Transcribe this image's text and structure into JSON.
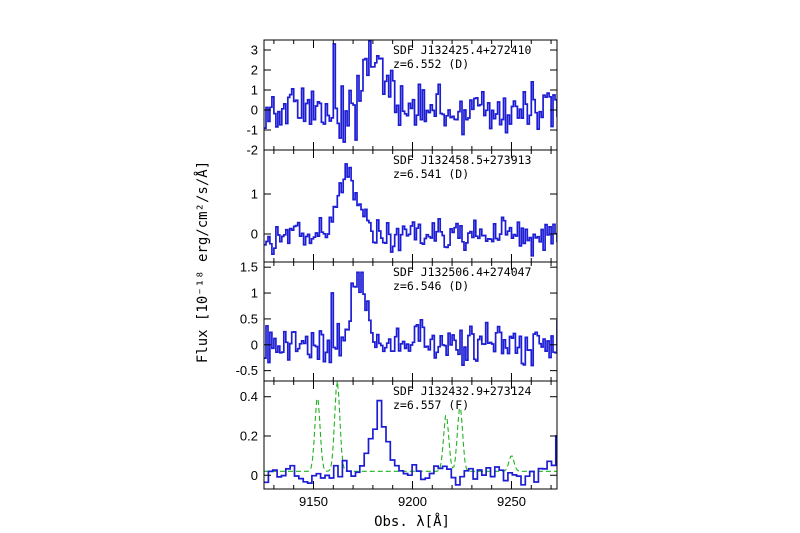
{
  "chart_data": {
    "type": "line",
    "xlabel": "Obs. λ[Å]",
    "ylabel": "Flux [10⁻¹⁸ erg/cm²/s/Å]",
    "xlim": [
      9125,
      9273
    ],
    "xticks": [
      9150,
      9200,
      9250
    ],
    "panels": [
      {
        "name": "SDF J132425.4+272410",
        "label": "SDF J132425.4+272410",
        "redshift_label": "z=6.552 (D)",
        "ylim": [
          -2,
          3.5
        ],
        "yticks": [
          -2,
          -1,
          0,
          1,
          2,
          3
        ],
        "line_center": 9180,
        "line_peak": 2.5,
        "line_width": 6,
        "noise": 1.0,
        "spikes": [
          [
            9160,
            3.3
          ],
          [
            9165,
            -1.6
          ],
          [
            9171,
            -1.5
          ]
        ],
        "series": [
          {
            "name": "spectrum",
            "color": "#1d1dd4"
          }
        ]
      },
      {
        "name": "SDF J132458.5+273913",
        "label": "SDF J132458.5+273913",
        "redshift_label": "z=6.541 (D)",
        "ylim": [
          -0.7,
          2.1
        ],
        "yticks": [
          0,
          1
        ],
        "line_center": 9167,
        "line_peak": 1.45,
        "line_width": 5,
        "noise": 0.32,
        "spikes": [
          [
            9166,
            1.75
          ]
        ],
        "series": [
          {
            "name": "spectrum",
            "color": "#1d1dd4"
          }
        ]
      },
      {
        "name": "SDF J132506.4+274047",
        "label": "SDF J132506.4+274047",
        "redshift_label": "z=6.546 (D)",
        "ylim": [
          -0.7,
          1.6
        ],
        "yticks": [
          -0.5,
          0,
          0.5,
          1,
          1.5
        ],
        "line_center": 9172,
        "line_peak": 1.1,
        "line_width": 3.5,
        "noise": 0.33,
        "spikes": [
          [
            9172,
            1.4
          ],
          [
            9174,
            1.4
          ],
          [
            9159,
            1.0
          ]
        ],
        "series": [
          {
            "name": "spectrum",
            "color": "#1d1dd4"
          }
        ]
      },
      {
        "name": "SDF J132432.9+273124",
        "label": "SDF J132432.9+273124",
        "redshift_label": "z=6.557 (F)",
        "ylim": [
          -0.07,
          0.48
        ],
        "yticks": [
          0,
          0.2,
          0.4
        ],
        "line_center": 9183,
        "line_peak": 0.27,
        "line_width": 5,
        "noise": 0.05,
        "spikes": [
          [
            9182,
            0.38
          ],
          [
            9272,
            0.2
          ]
        ],
        "series": [
          {
            "name": "spectrum",
            "color": "#1d1dd4"
          },
          {
            "name": "sky",
            "color": "#1fb31f",
            "style": "dashed"
          }
        ],
        "sky_lines": [
          [
            9152,
            0.38
          ],
          [
            9162,
            0.46
          ],
          [
            9217,
            0.29
          ],
          [
            9224,
            0.33
          ],
          [
            9250,
            0.08
          ]
        ]
      }
    ]
  }
}
